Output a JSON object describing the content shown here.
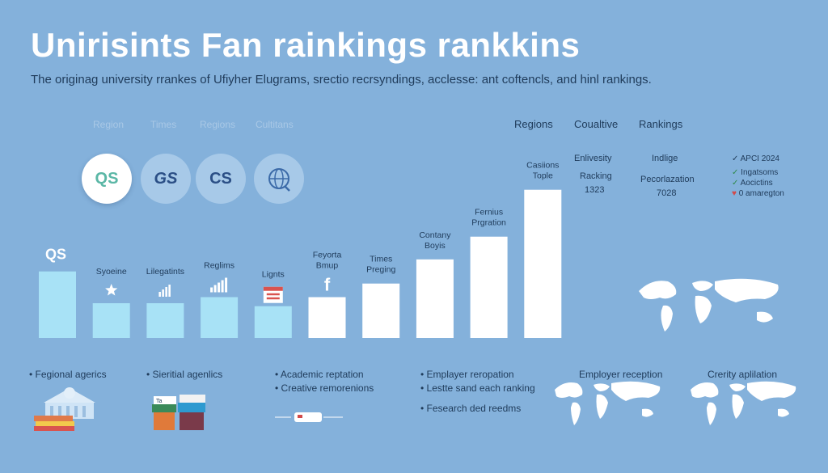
{
  "header": {
    "title": "Unirisints Fan rainkings rankkins",
    "subtitle": "The originag university rrankes of Ufiyher Elugrams, srectio recrsyndings, acclesse: ant coftencls, and hinl rankings."
  },
  "tabs": [
    "Region",
    "Times",
    "Regions",
    "Cultitans"
  ],
  "logos": [
    {
      "label": "QS",
      "icon": "qs-logo"
    },
    {
      "label": "GS",
      "icon": "times-logo"
    },
    {
      "label": "CS",
      "icon": "cs-logo"
    },
    {
      "label": "",
      "icon": "globe-icon"
    }
  ],
  "columns": {
    "headers": [
      "Regions",
      "Coualtive",
      "Rankings"
    ],
    "coualtive": [
      "Enlivesity",
      "Racking",
      "1323"
    ],
    "rankings": [
      "Indlige",
      "Pecorlazation",
      "7028"
    ]
  },
  "checklist": [
    {
      "mark": "✓",
      "text": "APCI 2024",
      "color": "#1f3b5a"
    },
    {
      "mark": "✓",
      "text": "Ingatsoms",
      "color": "#2f8a4a"
    },
    {
      "mark": "✓",
      "text": "Aocictins",
      "color": "#2f8a4a"
    },
    {
      "mark": "♥",
      "text": "0 amaregton",
      "color": "#d24a4a"
    }
  ],
  "chart_data": {
    "type": "bar",
    "title": "",
    "xlabel": "",
    "ylabel": "",
    "ylim": [
      0,
      10
    ],
    "categories": [
      "QS",
      "Syoeine",
      "Lilegatints",
      "Reglims",
      "Lignts",
      "Feyorta Bmup",
      "Times Preging",
      "Contany Boyis",
      "Fernius Prgration",
      "Casiions Tople"
    ],
    "values": [
      4.4,
      2.3,
      2.3,
      2.7,
      2.1,
      2.7,
      3.6,
      5.2,
      6.7,
      9.8
    ],
    "colors": [
      "#a8e2f6",
      "#a8e2f6",
      "#a8e2f6",
      "#a8e2f6",
      "#a8e2f6",
      "#ffffff",
      "#ffffff",
      "#ffffff",
      "#ffffff",
      "#ffffff"
    ],
    "bar_icons": [
      "",
      "star-icon",
      "signal-icon",
      "bar-chart-icon",
      "calendar-icon",
      "facebook-icon",
      "",
      "",
      "",
      ""
    ]
  },
  "bottom": {
    "items": [
      "• Fegional agerics",
      "• Sieritial agenlics",
      "• Academic reptation",
      "• Creative remorenions",
      "• Emplayer reropation",
      "• Lestte sand each ranking",
      "• Fesearch ded reedms",
      "Employer reception",
      "Crerity aplilation"
    ],
    "tag": "Ta"
  }
}
